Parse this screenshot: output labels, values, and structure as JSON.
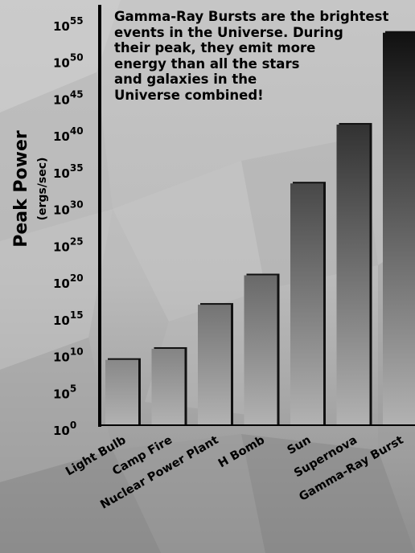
{
  "chart_data": {
    "type": "bar",
    "title": "",
    "ylabel": "Peak Power",
    "ylabel_sub": "(ergs/sec)",
    "xlabel": "",
    "y_scale": "log10",
    "ylim_exponent": [
      0,
      55
    ],
    "ytick_base": "10",
    "ytick_exponents": [
      "0",
      "5",
      "10",
      "15",
      "20",
      "25",
      "30",
      "35",
      "40",
      "45",
      "50",
      "55"
    ],
    "categories": [
      "Light Bulb",
      "Camp Fire",
      "Nuclear Power Plant",
      "H Bomb",
      "Sun",
      "Supernova",
      "Gamma-Ray Burst"
    ],
    "exponents": [
      9,
      10.5,
      16.5,
      20.5,
      33,
      41,
      53.5
    ],
    "grid": false,
    "legend": "none",
    "annotation": [
      "Gamma-Ray Bursts are the brightest",
      "events in the Universe. During",
      "their peak, they emit more",
      "energy than all the stars",
      "and galaxies in the",
      "Universe combined!"
    ]
  },
  "colors": {
    "bar_bottom": "#b2b2b2",
    "bar_top_max": "#111111",
    "axis": "#000000",
    "text": "#000000"
  }
}
